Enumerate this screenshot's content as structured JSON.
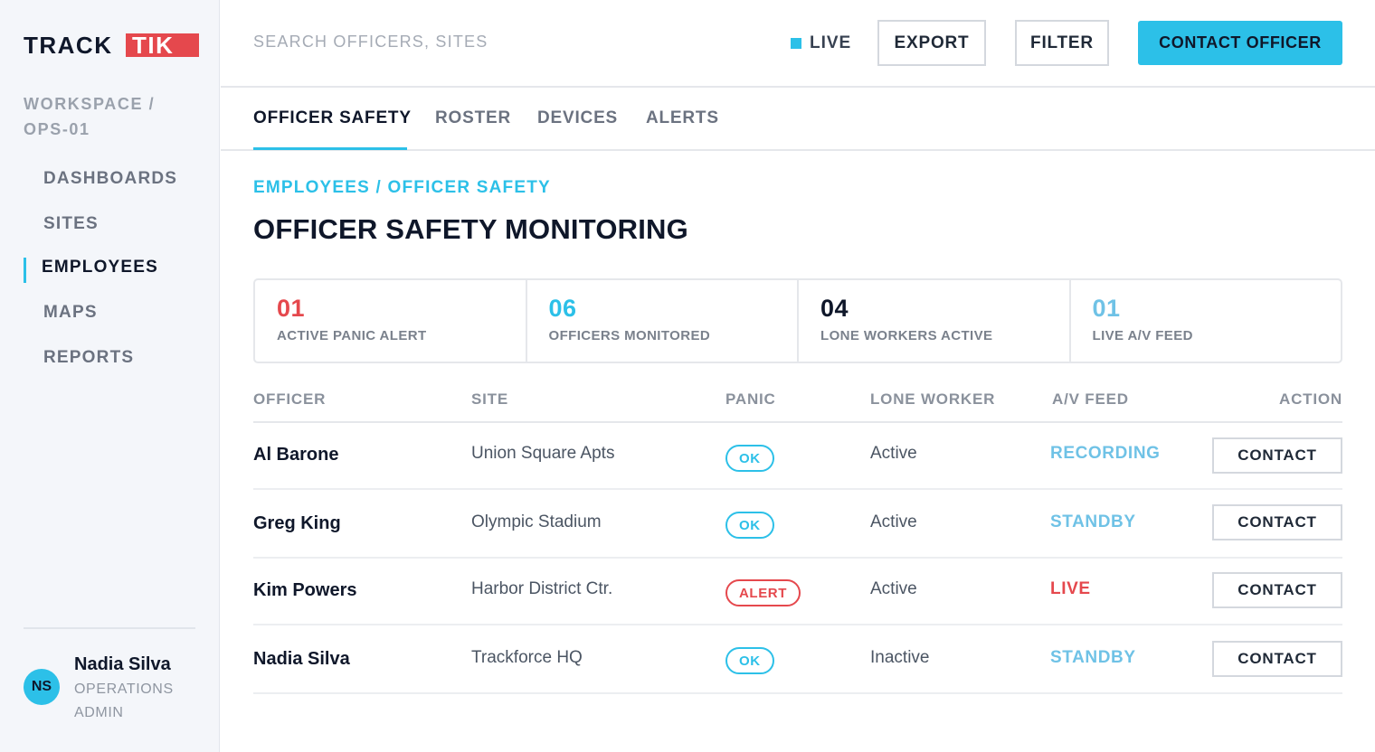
{
  "brand": {
    "logo_part1": "TRACK",
    "logo_part2": "TIK",
    "logo_box_color": "#e5484d"
  },
  "colors": {
    "accent": "#2cc0e8",
    "alert": "#e5484d",
    "text": "#0f172a"
  },
  "sidebar": {
    "workspace": "WORKSPACE / OPS-01",
    "items": [
      {
        "label": "DASHBOARDS",
        "active": false
      },
      {
        "label": "SITES",
        "active": false
      },
      {
        "label": "EMPLOYEES",
        "active": true
      },
      {
        "label": "MAPS",
        "active": false
      },
      {
        "label": "REPORTS",
        "active": false
      }
    ],
    "user": {
      "initials": "NS",
      "name": "Nadia Silva",
      "role": "OPERATIONS ADMIN"
    }
  },
  "topbar": {
    "search_placeholder": "SEARCH OFFICERS, SITES",
    "live_label": "LIVE",
    "export_label": "EXPORT",
    "filter_label": "FILTER",
    "contact_officer_label": "CONTACT OFFICER"
  },
  "tabs": [
    {
      "label": "OFFICER SAFETY",
      "active": true
    },
    {
      "label": "ROSTER",
      "active": false
    },
    {
      "label": "DEVICES",
      "active": false
    },
    {
      "label": "ALERTS",
      "active": false
    }
  ],
  "breadcrumb": "EMPLOYEES / OFFICER SAFETY",
  "page_title": "OFFICER SAFETY MONITORING",
  "stats": [
    {
      "value": "01",
      "label": "ACTIVE PANIC ALERT",
      "color": "#e5484d"
    },
    {
      "value": "06",
      "label": "OFFICERS MONITORED",
      "color": "#2cc0e8"
    },
    {
      "value": "04",
      "label": "LONE WORKERS ACTIVE",
      "color": "#0f172a"
    },
    {
      "value": "01",
      "label": "LIVE A/V FEED",
      "color": "#6fc2e6"
    }
  ],
  "table": {
    "headers": {
      "officer": "OFFICER",
      "site": "SITE",
      "panic": "PANIC",
      "lone": "LONE WORKER",
      "feed": "A/V FEED",
      "action": "ACTION"
    },
    "rows": [
      {
        "officer": "Al Barone",
        "site": "Union Square Apts",
        "panic": "OK",
        "panic_state": "ok",
        "lone": "Active",
        "feed": "RECORDING",
        "feed_state": "standby",
        "action": "CONTACT"
      },
      {
        "officer": "Greg King",
        "site": "Olympic Stadium",
        "panic": "OK",
        "panic_state": "ok",
        "lone": "Active",
        "feed": "STANDBY",
        "feed_state": "standby",
        "action": "CONTACT"
      },
      {
        "officer": "Kim Powers",
        "site": "Harbor District Ctr.",
        "panic": "ALERT",
        "panic_state": "alert",
        "lone": "Active",
        "feed": "LIVE",
        "feed_state": "live",
        "action": "CONTACT"
      },
      {
        "officer": "Nadia Silva",
        "site": "Trackforce HQ",
        "panic": "OK",
        "panic_state": "ok",
        "lone": "Inactive",
        "feed": "STANDBY",
        "feed_state": "standby",
        "action": "CONTACT"
      }
    ]
  }
}
